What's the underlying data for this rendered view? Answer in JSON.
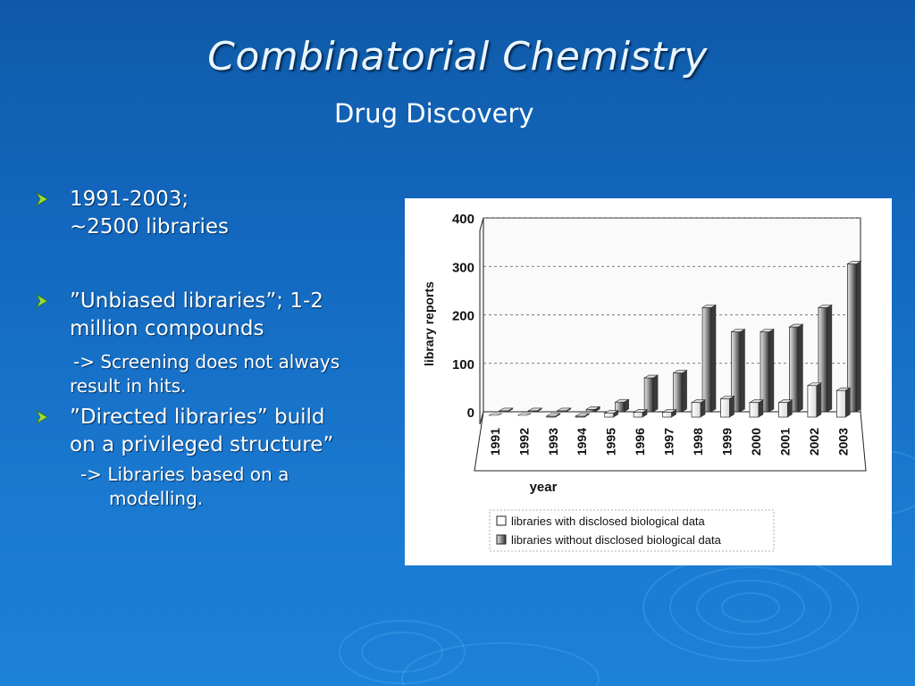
{
  "slide": {
    "title": "Combinatorial Chemistry",
    "subtitle": "Drug Discovery"
  },
  "bullets": [
    {
      "lines": [
        "1991-2003;",
        "~2500 libraries"
      ]
    },
    {
      "lines": [
        "”Unbiased libraries”; 1-2",
        "million compounds"
      ],
      "sub": [
        "-> Screening does not always",
        "result in hits."
      ]
    },
    {
      "lines": [
        "”Directed libraries” build",
        "on a privileged structure”"
      ],
      "sub": [
        "-> Libraries based on a",
        "modelling."
      ]
    }
  ],
  "chart_data": {
    "type": "bar",
    "ylabel": "library reports",
    "xlabel": "year",
    "ylim": [
      0,
      400
    ],
    "yticks": [
      "0",
      "100",
      "200",
      "300",
      "400"
    ],
    "categories": [
      "1991",
      "1992",
      "1993",
      "1994",
      "1995",
      "1996",
      "1997",
      "1998",
      "1999",
      "2000",
      "2001",
      "2002",
      "2003"
    ],
    "series": [
      {
        "name": "libraries with disclosed biological data",
        "values": [
          0,
          0,
          2,
          2,
          8,
          10,
          10,
          30,
          38,
          30,
          30,
          65,
          55
        ]
      },
      {
        "name": "libraries without disclosed biological data",
        "values": [
          2,
          2,
          2,
          5,
          20,
          70,
          80,
          215,
          165,
          165,
          175,
          215,
          305
        ]
      }
    ],
    "legend_position": "bottom",
    "grid": true
  },
  "colors": {
    "background": "#1368bf",
    "title": "#eaf6ff",
    "text": "#ffffff",
    "bullet_arrow": "#9be03a"
  }
}
